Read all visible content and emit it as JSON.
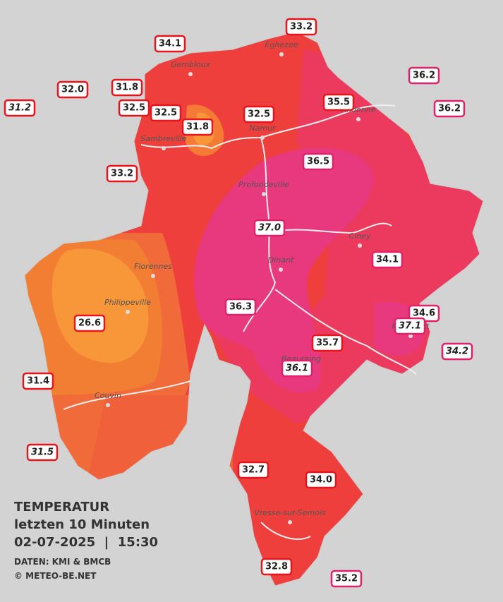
{
  "legend": {
    "title": "TEMPERATUR",
    "period": "letzten 10 Minuten",
    "datetime": "02-07-2025  |  15:30",
    "source": "DATEN: KMI & BMCB",
    "copyright": "© METEO-BE.NET"
  },
  "towns": [
    "Eghezee",
    "Gembloux",
    "Andenne",
    "Namur",
    "Sambreville",
    "Profondeville",
    "Ciney",
    "Dinant",
    "Florennes",
    "Philippeville",
    "Rochefort",
    "Beauraing",
    "Couvin",
    "Vresse-sur-Semois"
  ],
  "stations": [
    "34.1",
    "33.2",
    "36.2",
    "32.0",
    "31.8",
    "31.2",
    "32.5",
    "32.5",
    "31.8",
    "32.5",
    "35.5",
    "36.2",
    "33.2",
    "36.5",
    "37.0",
    "34.1",
    "36.3",
    "26.6",
    "34.6",
    "37.1",
    "35.7",
    "34.2",
    "36.1",
    "31.4",
    "31.5",
    "32.7",
    "34.0",
    "32.8",
    "35.2"
  ]
}
